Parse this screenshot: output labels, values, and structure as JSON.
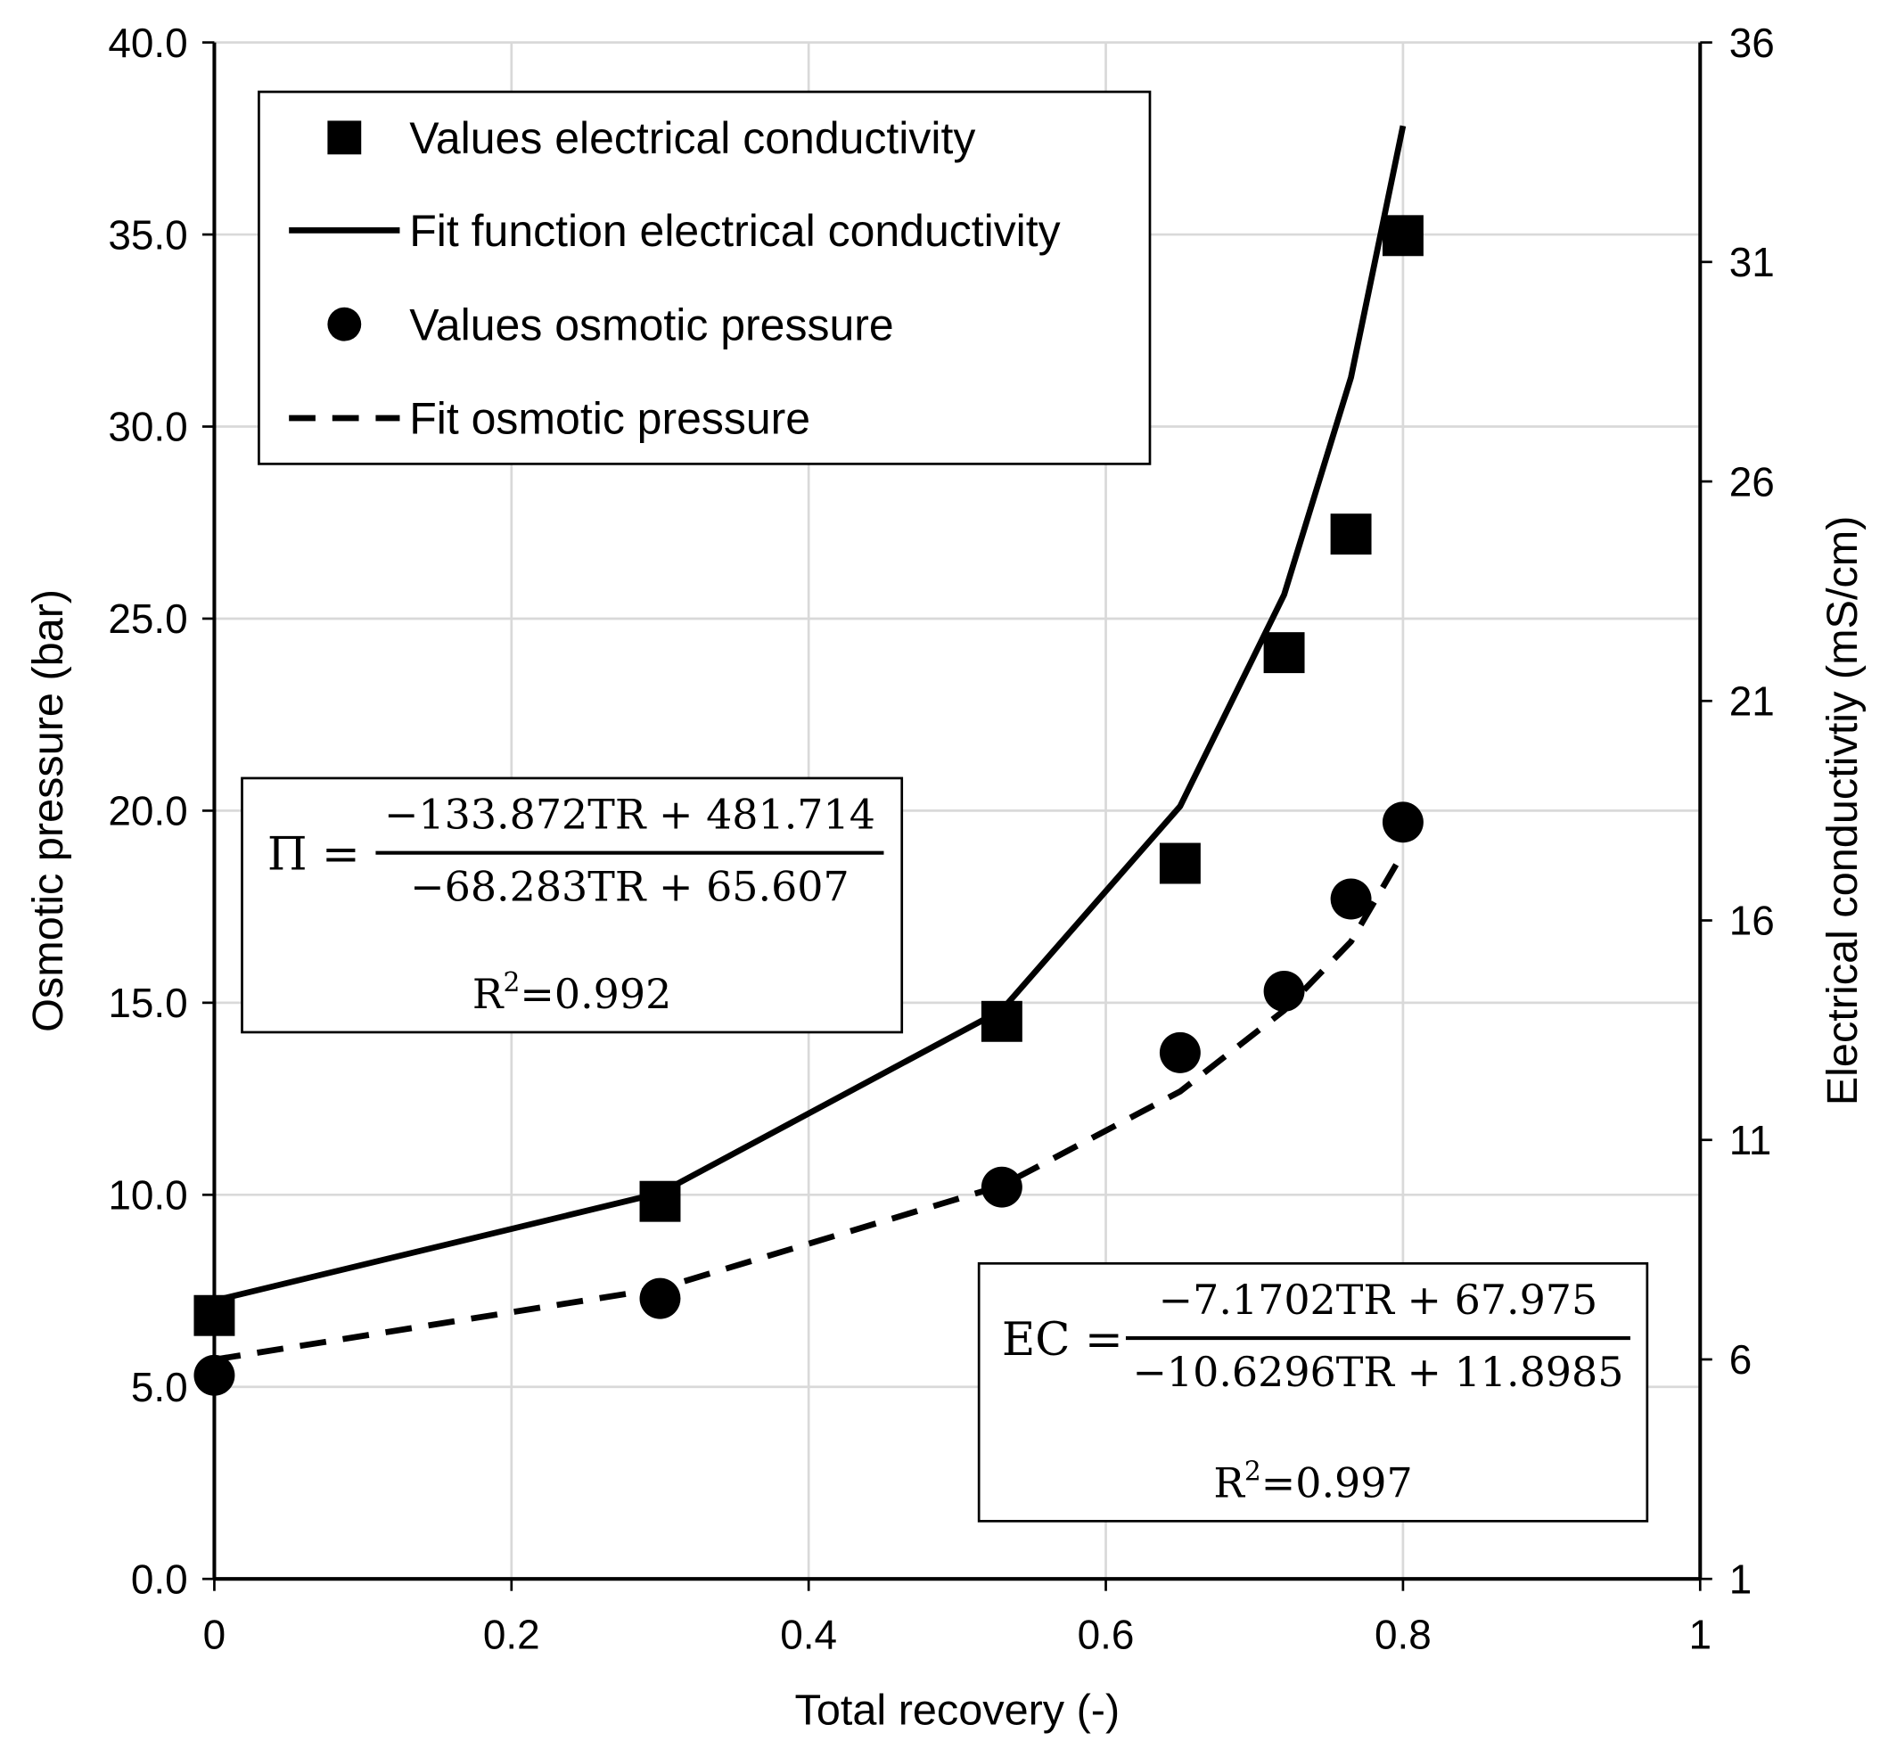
{
  "chart_data": {
    "type": "scatter",
    "title": "",
    "xlabel": "Total recovery (-)",
    "ylabel": "Osmotic pressure (bar)",
    "y2label": "Electrical conductivtiy (mS/cm)",
    "xlim": [
      0,
      1
    ],
    "ylim": [
      0,
      40
    ],
    "y2lim": [
      1,
      36
    ],
    "x_ticks": [
      "0",
      "0.2",
      "0.4",
      "0.6",
      "0.8",
      "1"
    ],
    "y_ticks": [
      "0.0",
      "5.0",
      "10.0",
      "15.0",
      "20.0",
      "25.0",
      "30.0",
      "35.0",
      "40.0"
    ],
    "y2_ticks": [
      "1",
      "6",
      "11",
      "16",
      "21",
      "26",
      "31",
      "36"
    ],
    "grid": true,
    "legend_placement": "top-left",
    "series": [
      {
        "name": "Values electrical conductivity",
        "kind": "square-markers",
        "axis": "right",
        "x": [
          0,
          0.3,
          0.53,
          0.65,
          0.72,
          0.765,
          0.8
        ],
        "y": [
          7.0,
          9.6,
          13.7,
          17.3,
          22.1,
          24.8,
          31.6
        ]
      },
      {
        "name": "Fit function electrical conductivity",
        "kind": "solid-line",
        "axis": "right",
        "x": [
          0,
          0.3,
          0.53,
          0.65,
          0.72,
          0.765,
          0.8
        ],
        "y": [
          7.34,
          9.79,
          13.96,
          18.6,
          23.42,
          28.37,
          34.1
        ]
      },
      {
        "name": "Values osmotic pressure",
        "kind": "circle-markers",
        "axis": "left",
        "x": [
          0,
          0.3,
          0.53,
          0.65,
          0.72,
          0.765,
          0.8
        ],
        "y": [
          5.3,
          7.3,
          10.2,
          13.7,
          15.3,
          17.7,
          19.7
        ]
      },
      {
        "name": "Fit osmotic pressure",
        "kind": "dashed-line",
        "axis": "left",
        "x": [
          0,
          0.3,
          0.53,
          0.65,
          0.72,
          0.765,
          0.8
        ],
        "y": [
          5.71,
          7.56,
          10.24,
          12.69,
          14.8,
          16.59,
          18.9
        ]
      }
    ],
    "annotations": [
      {
        "lhs": "Π =",
        "numerator": "−133.872TR + 481.714",
        "denominator": "−68.283TR + 65.607",
        "r2_label": "R",
        "r2_sup": "2",
        "r2_value": "=0.992"
      },
      {
        "lhs": "EC =",
        "numerator": "−7.1702TR + 67.975",
        "denominator": "−10.6296TR + 11.8985",
        "r2_label": "R",
        "r2_sup": "2",
        "r2_value": "=0.997"
      }
    ],
    "colors": {
      "marks": "#000000",
      "grid": "#d9d9d9"
    }
  }
}
